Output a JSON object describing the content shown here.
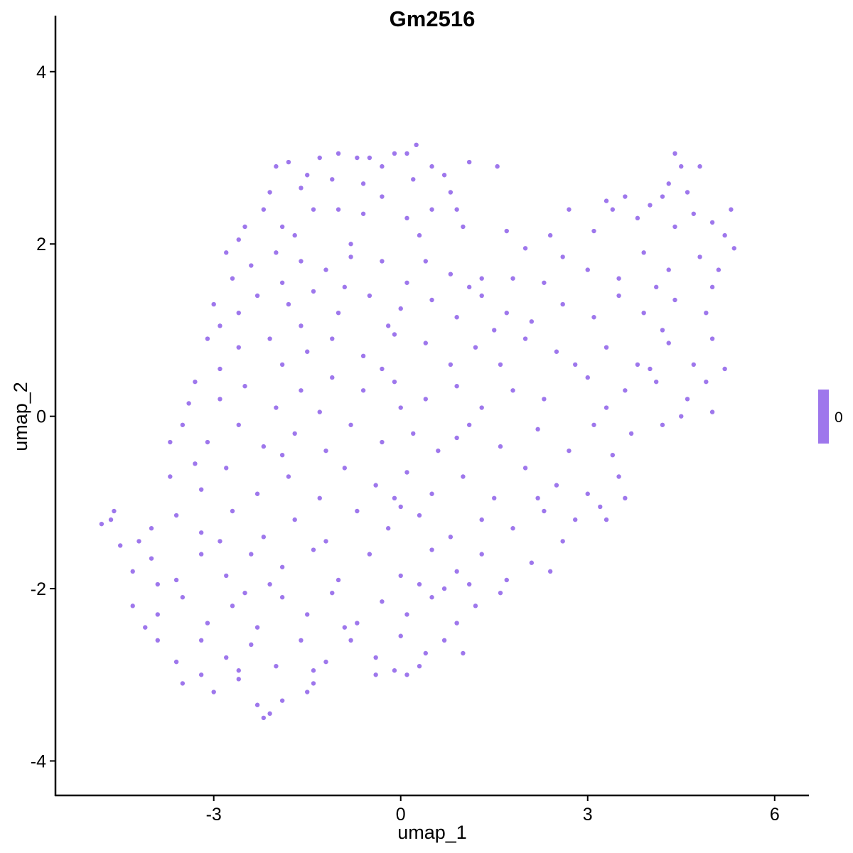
{
  "chart_data": {
    "type": "scatter",
    "title": "Gm2516",
    "xlabel": "umap_1",
    "ylabel": "umap_2",
    "xlim": [
      -5.54,
      6.55
    ],
    "ylim": [
      -4.4,
      4.65
    ],
    "xticks": [
      -3,
      0,
      3,
      6
    ],
    "yticks": [
      -4,
      -2,
      0,
      2,
      4
    ],
    "xtick_labels": [
      "-3",
      "0",
      "3",
      "6"
    ],
    "ytick_labels": [
      "-4",
      "-2",
      "0",
      "2",
      "4"
    ],
    "grid": false,
    "point_color": "#9E77EC",
    "legend": {
      "type": "colorbar",
      "placement": "right",
      "labels": [
        "0"
      ],
      "color": "#9E77EC"
    },
    "points": [
      [
        -2.0,
        2.9
      ],
      [
        -1.8,
        2.95
      ],
      [
        -1.5,
        2.8
      ],
      [
        -1.3,
        3.0
      ],
      [
        -1.0,
        3.05
      ],
      [
        -0.7,
        3.0
      ],
      [
        -0.5,
        3.0
      ],
      [
        -0.3,
        2.9
      ],
      [
        -0.1,
        3.05
      ],
      [
        0.1,
        3.05
      ],
      [
        0.25,
        3.15
      ],
      [
        0.5,
        2.9
      ],
      [
        0.7,
        2.8
      ],
      [
        1.1,
        2.95
      ],
      [
        1.55,
        2.9
      ],
      [
        -2.1,
        2.6
      ],
      [
        -1.6,
        2.65
      ],
      [
        -1.1,
        2.75
      ],
      [
        -0.6,
        2.7
      ],
      [
        0.2,
        2.75
      ],
      [
        0.8,
        2.6
      ],
      [
        4.4,
        3.05
      ],
      [
        4.5,
        2.9
      ],
      [
        4.8,
        2.9
      ],
      [
        4.3,
        2.7
      ],
      [
        4.6,
        2.6
      ],
      [
        4.2,
        2.55
      ],
      [
        3.3,
        2.5
      ],
      [
        3.6,
        2.55
      ],
      [
        -2.5,
        2.2
      ],
      [
        -2.2,
        2.4
      ],
      [
        -1.9,
        2.2
      ],
      [
        -1.4,
        2.4
      ],
      [
        -1.0,
        2.4
      ],
      [
        -0.6,
        2.35
      ],
      [
        -0.3,
        2.55
      ],
      [
        0.1,
        2.3
      ],
      [
        0.5,
        2.4
      ],
      [
        0.9,
        2.4
      ],
      [
        1.0,
        2.2
      ],
      [
        -2.6,
        2.05
      ],
      [
        -1.7,
        2.1
      ],
      [
        -0.8,
        2.0
      ],
      [
        0.3,
        2.1
      ],
      [
        2.7,
        2.4
      ],
      [
        3.1,
        2.15
      ],
      [
        3.4,
        2.4
      ],
      [
        3.8,
        2.3
      ],
      [
        4.0,
        2.45
      ],
      [
        4.4,
        2.2
      ],
      [
        4.7,
        2.35
      ],
      [
        5.0,
        2.25
      ],
      [
        5.3,
        2.4
      ],
      [
        5.2,
        2.1
      ],
      [
        2.4,
        2.1
      ],
      [
        1.7,
        2.15
      ],
      [
        -2.8,
        1.9
      ],
      [
        -2.4,
        1.75
      ],
      [
        -2.0,
        1.9
      ],
      [
        -1.6,
        1.8
      ],
      [
        -1.2,
        1.7
      ],
      [
        -0.8,
        1.85
      ],
      [
        -0.3,
        1.8
      ],
      [
        0.4,
        1.8
      ],
      [
        0.8,
        1.65
      ],
      [
        1.3,
        1.6
      ],
      [
        1.8,
        1.6
      ],
      [
        2.0,
        1.95
      ],
      [
        2.6,
        1.85
      ],
      [
        3.0,
        1.7
      ],
      [
        3.5,
        1.6
      ],
      [
        3.9,
        1.9
      ],
      [
        4.3,
        1.7
      ],
      [
        4.8,
        1.85
      ],
      [
        5.1,
        1.7
      ],
      [
        5.35,
        1.95
      ],
      [
        -2.7,
        1.6
      ],
      [
        -1.9,
        1.55
      ],
      [
        -0.9,
        1.5
      ],
      [
        0.1,
        1.55
      ],
      [
        1.1,
        1.5
      ],
      [
        2.3,
        1.55
      ],
      [
        4.1,
        1.5
      ],
      [
        -3.0,
        1.3
      ],
      [
        -2.6,
        1.2
      ],
      [
        -2.3,
        1.4
      ],
      [
        -1.8,
        1.3
      ],
      [
        -1.4,
        1.45
      ],
      [
        -1.0,
        1.2
      ],
      [
        -0.5,
        1.4
      ],
      [
        0.0,
        1.25
      ],
      [
        0.5,
        1.35
      ],
      [
        0.9,
        1.15
      ],
      [
        1.3,
        1.4
      ],
      [
        1.7,
        1.2
      ],
      [
        2.1,
        1.1
      ],
      [
        2.6,
        1.3
      ],
      [
        3.1,
        1.15
      ],
      [
        3.5,
        1.4
      ],
      [
        3.9,
        1.2
      ],
      [
        4.4,
        1.35
      ],
      [
        4.9,
        1.2
      ],
      [
        5.0,
        1.5
      ],
      [
        -2.9,
        1.05
      ],
      [
        -1.6,
        1.05
      ],
      [
        -0.2,
        1.05
      ],
      [
        1.5,
        1.0
      ],
      [
        4.2,
        1.0
      ],
      [
        -3.1,
        0.9
      ],
      [
        -2.6,
        0.8
      ],
      [
        -2.1,
        0.9
      ],
      [
        -1.5,
        0.75
      ],
      [
        -1.1,
        0.9
      ],
      [
        -0.6,
        0.7
      ],
      [
        -0.1,
        0.95
      ],
      [
        0.4,
        0.85
      ],
      [
        0.8,
        0.6
      ],
      [
        1.2,
        0.8
      ],
      [
        1.6,
        0.6
      ],
      [
        2.0,
        0.9
      ],
      [
        2.5,
        0.75
      ],
      [
        2.8,
        0.6
      ],
      [
        3.3,
        0.8
      ],
      [
        3.8,
        0.6
      ],
      [
        4.3,
        0.85
      ],
      [
        4.7,
        0.6
      ],
      [
        5.0,
        0.9
      ],
      [
        5.2,
        0.55
      ],
      [
        -2.9,
        0.55
      ],
      [
        -1.9,
        0.6
      ],
      [
        -0.3,
        0.55
      ],
      [
        4.0,
        0.55
      ],
      [
        -3.3,
        0.4
      ],
      [
        -2.9,
        0.2
      ],
      [
        -2.5,
        0.35
      ],
      [
        -2.0,
        0.1
      ],
      [
        -1.6,
        0.3
      ],
      [
        -1.1,
        0.45
      ],
      [
        -0.6,
        0.3
      ],
      [
        -0.1,
        0.4
      ],
      [
        0.4,
        0.2
      ],
      [
        0.9,
        0.35
      ],
      [
        1.3,
        0.1
      ],
      [
        1.8,
        0.3
      ],
      [
        2.3,
        0.2
      ],
      [
        3.0,
        0.45
      ],
      [
        3.6,
        0.3
      ],
      [
        4.1,
        0.4
      ],
      [
        4.6,
        0.2
      ],
      [
        4.9,
        0.4
      ],
      [
        5.0,
        0.05
      ],
      [
        -3.4,
        0.15
      ],
      [
        -1.3,
        0.05
      ],
      [
        0.0,
        0.1
      ],
      [
        3.3,
        0.1
      ],
      [
        -3.5,
        -0.1
      ],
      [
        -3.1,
        -0.3
      ],
      [
        -2.6,
        -0.1
      ],
      [
        -2.2,
        -0.35
      ],
      [
        -1.7,
        -0.2
      ],
      [
        -1.2,
        -0.4
      ],
      [
        -0.8,
        -0.1
      ],
      [
        -0.3,
        -0.3
      ],
      [
        0.2,
        -0.2
      ],
      [
        0.6,
        -0.4
      ],
      [
        1.1,
        -0.1
      ],
      [
        1.6,
        -0.35
      ],
      [
        2.2,
        -0.15
      ],
      [
        2.7,
        -0.4
      ],
      [
        3.1,
        -0.1
      ],
      [
        3.7,
        -0.2
      ],
      [
        4.2,
        -0.1
      ],
      [
        4.5,
        0.0
      ],
      [
        -3.7,
        -0.3
      ],
      [
        -1.9,
        -0.45
      ],
      [
        0.9,
        -0.25
      ],
      [
        3.4,
        -0.45
      ],
      [
        -3.7,
        -0.7
      ],
      [
        -3.2,
        -0.85
      ],
      [
        -2.8,
        -0.6
      ],
      [
        -2.3,
        -0.9
      ],
      [
        -1.8,
        -0.7
      ],
      [
        -1.3,
        -0.95
      ],
      [
        -0.9,
        -0.6
      ],
      [
        -0.4,
        -0.8
      ],
      [
        0.1,
        -0.65
      ],
      [
        0.5,
        -0.9
      ],
      [
        1.0,
        -0.7
      ],
      [
        1.5,
        -0.95
      ],
      [
        2.0,
        -0.6
      ],
      [
        2.5,
        -0.8
      ],
      [
        3.0,
        -0.9
      ],
      [
        3.5,
        -0.7
      ],
      [
        3.6,
        -0.95
      ],
      [
        -3.3,
        -0.55
      ],
      [
        -0.1,
        -0.95
      ],
      [
        2.2,
        -0.95
      ],
      [
        -4.6,
        -1.1
      ],
      [
        -4.65,
        -1.2
      ],
      [
        -4.8,
        -1.25
      ],
      [
        -4.0,
        -1.3
      ],
      [
        -3.6,
        -1.15
      ],
      [
        -3.2,
        -1.35
      ],
      [
        -2.7,
        -1.1
      ],
      [
        -2.2,
        -1.4
      ],
      [
        -1.7,
        -1.2
      ],
      [
        -1.2,
        -1.45
      ],
      [
        -0.7,
        -1.1
      ],
      [
        -0.2,
        -1.3
      ],
      [
        0.3,
        -1.15
      ],
      [
        0.8,
        -1.4
      ],
      [
        1.3,
        -1.2
      ],
      [
        1.8,
        -1.3
      ],
      [
        2.3,
        -1.1
      ],
      [
        2.8,
        -1.2
      ],
      [
        3.2,
        -1.05
      ],
      [
        3.3,
        -1.2
      ],
      [
        -4.2,
        -1.45
      ],
      [
        -2.9,
        -1.45
      ],
      [
        0.0,
        -1.05
      ],
      [
        2.6,
        -1.45
      ],
      [
        -4.5,
        -1.5
      ],
      [
        -4.3,
        -1.8
      ],
      [
        -4.0,
        -1.65
      ],
      [
        -3.6,
        -1.9
      ],
      [
        -3.2,
        -1.6
      ],
      [
        -2.8,
        -1.85
      ],
      [
        -2.4,
        -1.6
      ],
      [
        -1.9,
        -1.75
      ],
      [
        -1.4,
        -1.55
      ],
      [
        -1.0,
        -1.9
      ],
      [
        -0.5,
        -1.6
      ],
      [
        0.0,
        -1.85
      ],
      [
        0.5,
        -1.55
      ],
      [
        0.9,
        -1.8
      ],
      [
        1.3,
        -1.6
      ],
      [
        1.7,
        -1.9
      ],
      [
        2.1,
        -1.7
      ],
      [
        2.4,
        -1.8
      ],
      [
        -3.9,
        -1.95
      ],
      [
        -2.1,
        -1.95
      ],
      [
        0.3,
        -1.95
      ],
      [
        1.1,
        -1.95
      ],
      [
        -4.3,
        -2.2
      ],
      [
        -3.9,
        -2.3
      ],
      [
        -3.5,
        -2.1
      ],
      [
        -3.1,
        -2.4
      ],
      [
        -2.7,
        -2.2
      ],
      [
        -2.3,
        -2.45
      ],
      [
        -1.9,
        -2.1
      ],
      [
        -1.5,
        -2.3
      ],
      [
        -1.1,
        -2.05
      ],
      [
        -0.7,
        -2.4
      ],
      [
        -0.3,
        -2.15
      ],
      [
        0.1,
        -2.3
      ],
      [
        0.5,
        -2.1
      ],
      [
        0.9,
        -2.4
      ],
      [
        1.2,
        -2.2
      ],
      [
        1.6,
        -2.05
      ],
      [
        -4.1,
        -2.45
      ],
      [
        -2.5,
        -2.05
      ],
      [
        -0.9,
        -2.45
      ],
      [
        0.7,
        -2.0
      ],
      [
        -3.9,
        -2.6
      ],
      [
        -3.6,
        -2.85
      ],
      [
        -3.2,
        -2.6
      ],
      [
        -2.8,
        -2.8
      ],
      [
        -2.4,
        -2.65
      ],
      [
        -2.0,
        -2.9
      ],
      [
        -1.6,
        -2.6
      ],
      [
        -1.2,
        -2.85
      ],
      [
        -0.8,
        -2.6
      ],
      [
        -0.4,
        -2.8
      ],
      [
        0.0,
        -2.55
      ],
      [
        0.4,
        -2.75
      ],
      [
        0.7,
        -2.6
      ],
      [
        1.0,
        -2.75
      ],
      [
        -2.6,
        -2.95
      ],
      [
        -1.4,
        -2.95
      ],
      [
        -0.1,
        -2.95
      ],
      [
        0.3,
        -2.9
      ],
      [
        -3.5,
        -3.1
      ],
      [
        -3.0,
        -3.2
      ],
      [
        -2.6,
        -3.05
      ],
      [
        -2.3,
        -3.35
      ],
      [
        -2.2,
        -3.5
      ],
      [
        -2.1,
        -3.45
      ],
      [
        -1.9,
        -3.3
      ],
      [
        -1.5,
        -3.2
      ],
      [
        -1.4,
        -3.1
      ],
      [
        -0.4,
        -3.0
      ],
      [
        0.1,
        -3.0
      ],
      [
        -3.2,
        -3.0
      ]
    ]
  }
}
